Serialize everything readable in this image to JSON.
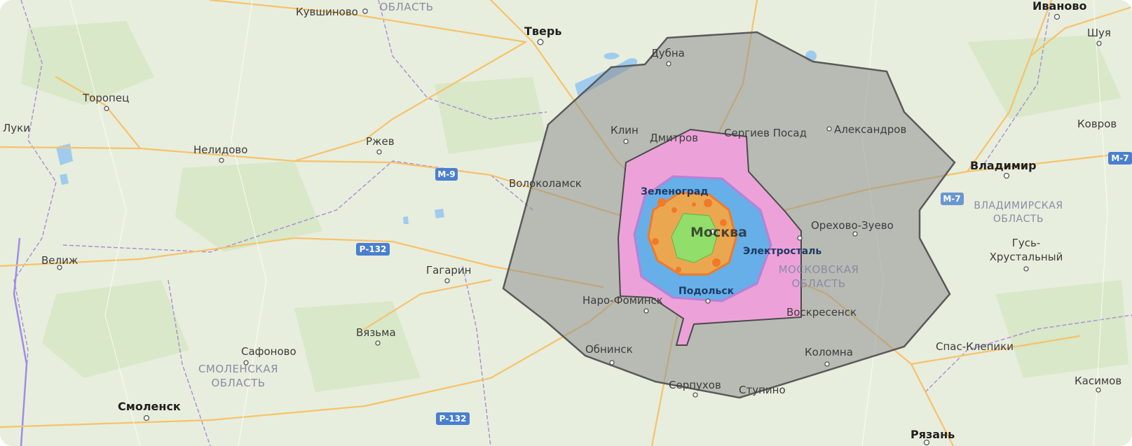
{
  "map": {
    "colors": {
      "land": "#e8eedd",
      "road": "#f6c26b",
      "border": "#a88ad8",
      "zone_outer": "#8c8c8c",
      "zone_pink": "#f0a0dc",
      "zone_blue": "#5fb0ea",
      "zone_orange": "#f2a648",
      "zone_green": "#8fe06b"
    },
    "regions": [
      {
        "id": "tver-oblast",
        "label": "ОБЛАСТЬ"
      },
      {
        "id": "vladimir-oblast-1",
        "label": "ВЛАДИМИРСКАЯ"
      },
      {
        "id": "vladimir-oblast-2",
        "label": "ОБЛАСТЬ"
      },
      {
        "id": "moscow-oblast-1",
        "label": "МОСКОВСКАЯ"
      },
      {
        "id": "moscow-oblast-2",
        "label": "ОБЛАСТЬ"
      },
      {
        "id": "smolensk-oblast-1",
        "label": "СМОЛЕНСКАЯ"
      },
      {
        "id": "smolensk-oblast-2",
        "label": "ОБЛАСТЬ"
      }
    ],
    "cities": [
      {
        "id": "kuvshinovo",
        "label": "Кувшиново"
      },
      {
        "id": "tver",
        "label": "Тверь"
      },
      {
        "id": "dubna",
        "label": "Дубна"
      },
      {
        "id": "ivanovo",
        "label": "Иваново"
      },
      {
        "id": "shuya",
        "label": "Шуя"
      },
      {
        "id": "toropets",
        "label": "Торопец"
      },
      {
        "id": "luki",
        "label": "Луки"
      },
      {
        "id": "nelidovo",
        "label": "Нелидово"
      },
      {
        "id": "rzhev",
        "label": "Ржев"
      },
      {
        "id": "klin",
        "label": "Клин"
      },
      {
        "id": "dmitrov",
        "label": "Дмитров"
      },
      {
        "id": "sergiev-posad",
        "label": "Сергиев Посад"
      },
      {
        "id": "aleksandrov",
        "label": "Александров"
      },
      {
        "id": "kovrov",
        "label": "Ковров"
      },
      {
        "id": "volokolamsk",
        "label": "Волоколамск"
      },
      {
        "id": "zelenograd",
        "label": "Зеленоград"
      },
      {
        "id": "vladimir",
        "label": "Владимир"
      },
      {
        "id": "moskva",
        "label": "Москва"
      },
      {
        "id": "orekhovo-zuevo",
        "label": "Орехово-Зуево"
      },
      {
        "id": "velizh",
        "label": "Велиж"
      },
      {
        "id": "elektrostal",
        "label": "Электросталь"
      },
      {
        "id": "gus-1",
        "label": "Гусь-"
      },
      {
        "id": "gus-2",
        "label": "Хрустальный"
      },
      {
        "id": "gagarin",
        "label": "Гагарин"
      },
      {
        "id": "podolsk",
        "label": "Подольск"
      },
      {
        "id": "naro-fominsk",
        "label": "Наро-Фоминск"
      },
      {
        "id": "voskresensk",
        "label": "Воскресенск"
      },
      {
        "id": "vyazma",
        "label": "Вязьма"
      },
      {
        "id": "obninsk",
        "label": "Обнинск"
      },
      {
        "id": "kolomna",
        "label": "Коломна"
      },
      {
        "id": "spas-klepiki",
        "label": "Спас-Клепики"
      },
      {
        "id": "safonovo",
        "label": "Сафоново"
      },
      {
        "id": "serpukhov",
        "label": "Серпухов"
      },
      {
        "id": "stupino",
        "label": "Ступино"
      },
      {
        "id": "kasimov",
        "label": "Касимов"
      },
      {
        "id": "smolensk",
        "label": "Смоленск"
      },
      {
        "id": "ryazan",
        "label": "Рязань"
      }
    ],
    "road_shields": [
      {
        "id": "m9",
        "label": "М-9"
      },
      {
        "id": "m7a",
        "label": "М-7"
      },
      {
        "id": "m7b",
        "label": "М-7"
      },
      {
        "id": "r132a",
        "label": "Р-132"
      },
      {
        "id": "r132b",
        "label": "Р-132"
      }
    ]
  }
}
